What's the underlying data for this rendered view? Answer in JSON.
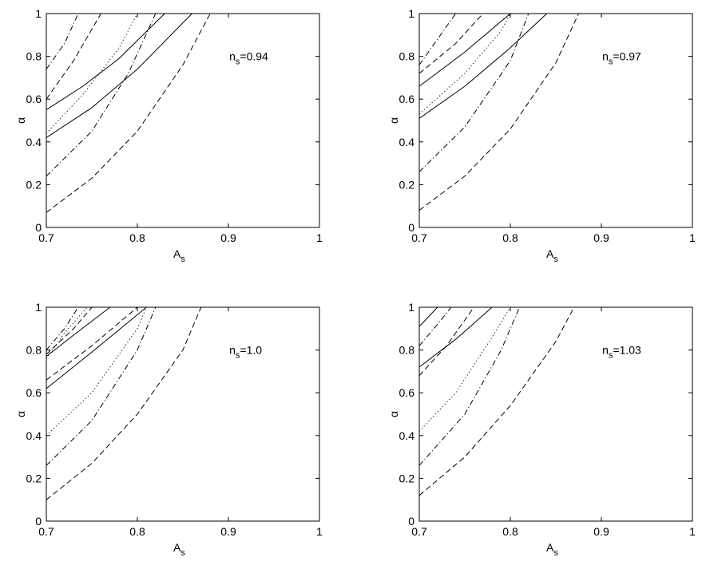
{
  "chart_data": [
    {
      "type": "line",
      "annotation": [
        "n",
        "s",
        "=0.94"
      ],
      "xlabel": [
        "A",
        "s"
      ],
      "ylabel": "α",
      "xlim": [
        0.7,
        1
      ],
      "ylim": [
        0,
        1
      ],
      "xticks": [
        0.7,
        0.8,
        0.9,
        1
      ],
      "yticks": [
        0,
        0.2,
        0.4,
        0.6,
        0.8,
        1
      ],
      "series": [
        {
          "color": "#000000",
          "dash": "dashdot",
          "x": [
            0.7,
            0.72,
            0.735
          ],
          "values": [
            0.74,
            0.86,
            1.0
          ]
        },
        {
          "color": "#000000",
          "dash": "dashed",
          "x": [
            0.7,
            0.73,
            0.76
          ],
          "values": [
            0.6,
            0.78,
            1.0
          ]
        },
        {
          "color": "#000000",
          "dash": "solid",
          "x": [
            0.7,
            0.74,
            0.78,
            0.83
          ],
          "values": [
            0.55,
            0.66,
            0.79,
            1.0
          ]
        },
        {
          "color": "#000000",
          "dash": "dotted",
          "x": [
            0.7,
            0.74,
            0.78,
            0.8
          ],
          "values": [
            0.44,
            0.62,
            0.84,
            1.0
          ]
        },
        {
          "color": "#000000",
          "dash": "solid",
          "x": [
            0.7,
            0.75,
            0.8,
            0.86
          ],
          "values": [
            0.42,
            0.56,
            0.74,
            1.0
          ]
        },
        {
          "color": "#000000",
          "dash": "dashdot",
          "x": [
            0.7,
            0.75,
            0.79,
            0.82
          ],
          "values": [
            0.24,
            0.45,
            0.72,
            1.0
          ]
        },
        {
          "color": "#000000",
          "dash": "dashed",
          "x": [
            0.7,
            0.75,
            0.8,
            0.85,
            0.88
          ],
          "values": [
            0.07,
            0.23,
            0.45,
            0.76,
            1.0
          ]
        }
      ]
    },
    {
      "type": "line",
      "annotation": [
        "n",
        "s",
        "=0.97"
      ],
      "xlabel": [
        "A",
        "s"
      ],
      "ylabel": "α",
      "xlim": [
        0.7,
        1
      ],
      "ylim": [
        0,
        1
      ],
      "xticks": [
        0.7,
        0.8,
        0.9,
        1
      ],
      "yticks": [
        0,
        0.2,
        0.4,
        0.6,
        0.8,
        1
      ],
      "series": [
        {
          "color": "#000000",
          "dash": "dashdot",
          "x": [
            0.7,
            0.72,
            0.74
          ],
          "values": [
            0.76,
            0.88,
            1.0
          ]
        },
        {
          "color": "#000000",
          "dash": "dashed",
          "x": [
            0.7,
            0.74,
            0.77
          ],
          "values": [
            0.72,
            0.86,
            1.0
          ]
        },
        {
          "color": "#000000",
          "dash": "solid",
          "x": [
            0.7,
            0.75,
            0.8
          ],
          "values": [
            0.66,
            0.82,
            1.0
          ]
        },
        {
          "color": "#000000",
          "dash": "dotted",
          "x": [
            0.7,
            0.75,
            0.79,
            0.8
          ],
          "values": [
            0.53,
            0.72,
            0.92,
            1.0
          ]
        },
        {
          "color": "#000000",
          "dash": "solid",
          "x": [
            0.7,
            0.75,
            0.8,
            0.84
          ],
          "values": [
            0.51,
            0.66,
            0.84,
            1.0
          ]
        },
        {
          "color": "#000000",
          "dash": "dashdot",
          "x": [
            0.7,
            0.75,
            0.8,
            0.82
          ],
          "values": [
            0.26,
            0.47,
            0.78,
            1.0
          ]
        },
        {
          "color": "#000000",
          "dash": "dashed",
          "x": [
            0.7,
            0.75,
            0.8,
            0.85,
            0.875
          ],
          "values": [
            0.08,
            0.24,
            0.46,
            0.77,
            1.0
          ]
        }
      ]
    },
    {
      "type": "line",
      "annotation": [
        "n",
        "s",
        "=1.0"
      ],
      "xlabel": [
        "A",
        "s"
      ],
      "ylabel": "α",
      "xlim": [
        0.7,
        1
      ],
      "ylim": [
        0,
        1
      ],
      "xticks": [
        0.7,
        0.8,
        0.9,
        1
      ],
      "yticks": [
        0,
        0.2,
        0.4,
        0.6,
        0.8,
        1
      ],
      "series": [
        {
          "color": "#000000",
          "dash": "dashdot",
          "x": [
            0.7,
            0.72,
            0.735
          ],
          "values": [
            0.8,
            0.9,
            1.0
          ]
        },
        {
          "color": "#000000",
          "dash": "dashed",
          "x": [
            0.7,
            0.73,
            0.75
          ],
          "values": [
            0.78,
            0.9,
            1.0
          ]
        },
        {
          "color": "#000000",
          "dash": "dotted",
          "x": [
            0.7,
            0.72,
            0.745
          ],
          "values": [
            0.76,
            0.88,
            1.0
          ]
        },
        {
          "color": "#000000",
          "dash": "solid",
          "x": [
            0.7,
            0.73,
            0.77
          ],
          "values": [
            0.77,
            0.87,
            1.0
          ]
        },
        {
          "color": "#000000",
          "dash": "dashed",
          "x": [
            0.7,
            0.75,
            0.8
          ],
          "values": [
            0.66,
            0.82,
            1.0
          ]
        },
        {
          "color": "#000000",
          "dash": "solid",
          "x": [
            0.7,
            0.75,
            0.81
          ],
          "values": [
            0.62,
            0.79,
            1.0
          ]
        },
        {
          "color": "#000000",
          "dash": "dotted",
          "x": [
            0.7,
            0.75,
            0.8,
            0.81
          ],
          "values": [
            0.4,
            0.6,
            0.9,
            1.0
          ]
        },
        {
          "color": "#000000",
          "dash": "dashdot",
          "x": [
            0.7,
            0.75,
            0.8,
            0.82
          ],
          "values": [
            0.26,
            0.47,
            0.8,
            1.0
          ]
        },
        {
          "color": "#000000",
          "dash": "dashed",
          "x": [
            0.7,
            0.75,
            0.8,
            0.85,
            0.87
          ],
          "values": [
            0.1,
            0.27,
            0.5,
            0.8,
            1.0
          ]
        }
      ]
    },
    {
      "type": "line",
      "annotation": [
        "n",
        "s",
        "=1.03"
      ],
      "xlabel": [
        "A",
        "s"
      ],
      "ylabel": "α",
      "xlim": [
        0.7,
        1
      ],
      "ylim": [
        0,
        1
      ],
      "xticks": [
        0.7,
        0.8,
        0.9,
        1
      ],
      "yticks": [
        0,
        0.2,
        0.4,
        0.6,
        0.8,
        1
      ],
      "series": [
        {
          "color": "#000000",
          "dash": "solid",
          "x": [
            0.7,
            0.72
          ],
          "values": [
            0.91,
            1.0
          ]
        },
        {
          "color": "#000000",
          "dash": "dashdot",
          "x": [
            0.7,
            0.72,
            0.735
          ],
          "values": [
            0.82,
            0.92,
            1.0
          ]
        },
        {
          "color": "#000000",
          "dash": "solid",
          "x": [
            0.7,
            0.74,
            0.78
          ],
          "values": [
            0.72,
            0.85,
            1.0
          ]
        },
        {
          "color": "#000000",
          "dash": "dashed",
          "x": [
            0.7,
            0.73,
            0.76
          ],
          "values": [
            0.68,
            0.82,
            1.0
          ]
        },
        {
          "color": "#000000",
          "dash": "dotted",
          "x": [
            0.7,
            0.74,
            0.78,
            0.8
          ],
          "values": [
            0.42,
            0.6,
            0.86,
            1.0
          ]
        },
        {
          "color": "#000000",
          "dash": "dashdot",
          "x": [
            0.7,
            0.75,
            0.79,
            0.81
          ],
          "values": [
            0.26,
            0.5,
            0.8,
            1.0
          ]
        },
        {
          "color": "#000000",
          "dash": "dashed",
          "x": [
            0.7,
            0.75,
            0.8,
            0.85,
            0.87
          ],
          "values": [
            0.12,
            0.3,
            0.54,
            0.84,
            1.0
          ]
        }
      ]
    }
  ]
}
